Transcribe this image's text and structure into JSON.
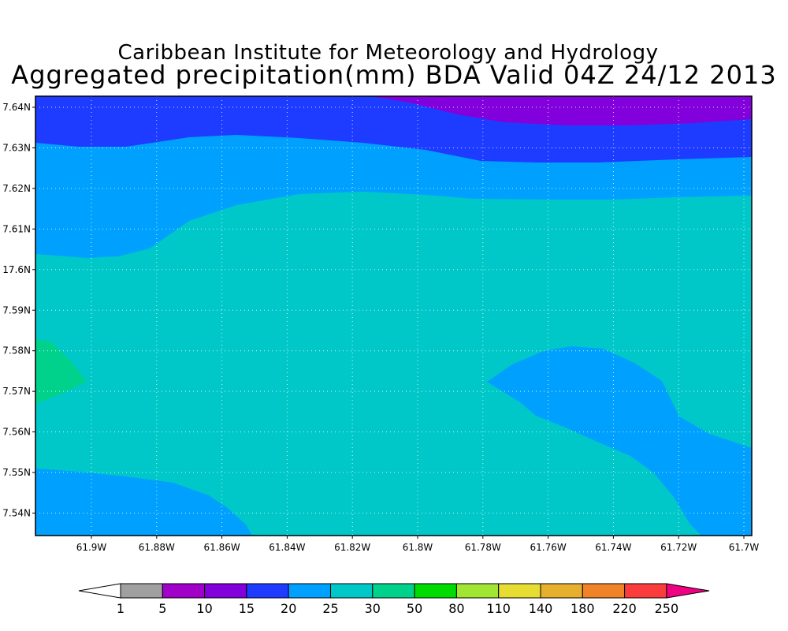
{
  "header": {
    "title": "Caribbean Institute for Meteorology and Hydrology",
    "subtitle": "Aggregated precipitation(mm) BDA Valid 04Z 24/12 2013"
  },
  "map": {
    "lat_labels": [
      "7.64N",
      "7.63N",
      "7.62N",
      "7.61N",
      "17.6N",
      "7.59N",
      "7.58N",
      "7.57N",
      "7.56N",
      "7.55N",
      "7.54N"
    ],
    "lon_labels": [
      "61.9W",
      "61.88W",
      "61.86W",
      "61.84W",
      "61.82W",
      "61.8W",
      "61.78W",
      "61.76W",
      "61.74W",
      "61.72W",
      "61.7W"
    ],
    "background_color": "#00c8c8",
    "grid": true
  },
  "colorbar": {
    "labels": [
      "1",
      "5",
      "10",
      "15",
      "20",
      "25",
      "30",
      "50",
      "80",
      "110",
      "140",
      "180",
      "220",
      "250"
    ],
    "colors": [
      "#ffffff",
      "#a0a0a0",
      "#a000c8",
      "#8200dc",
      "#1e3cff",
      "#00a0ff",
      "#00c8c8",
      "#00d28c",
      "#00dc00",
      "#a0e632",
      "#e6dc32",
      "#e6af2d",
      "#f08228",
      "#fa3c3c",
      "#f00082"
    ]
  }
}
